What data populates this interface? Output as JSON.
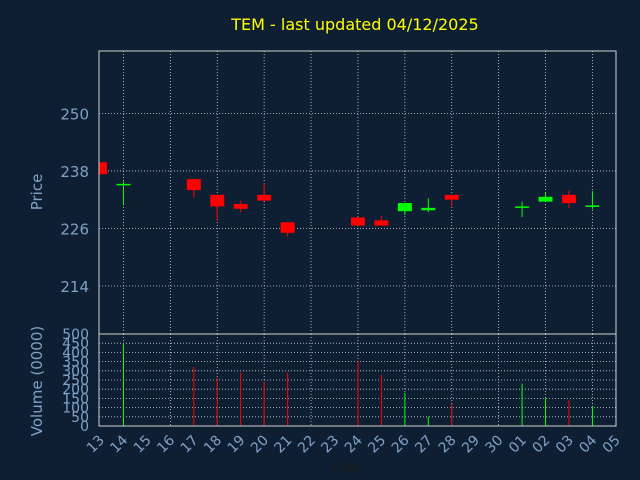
{
  "chart_data": {
    "type": "candlestick",
    "title": "TEM - last updated 04/12/2025",
    "xlabel": "Day",
    "price_panel": {
      "ylabel": "Price",
      "yticks": [
        214,
        226,
        238,
        250
      ],
      "ylim": [
        204,
        263
      ]
    },
    "volume_panel": {
      "ylabel": "Volume (0000)",
      "yticks": [
        0,
        50,
        100,
        150,
        200,
        250,
        300,
        350,
        400,
        450,
        500
      ],
      "ylim": [
        0,
        500
      ]
    },
    "x_tick_labels": [
      "13",
      "14",
      "15",
      "16",
      "17",
      "18",
      "19",
      "20",
      "21",
      "22",
      "23",
      "24",
      "25",
      "26",
      "27",
      "28",
      "29",
      "30",
      "01",
      "02",
      "03",
      "04",
      "05"
    ],
    "colors": {
      "up": "#00ff00",
      "down": "#ff0000",
      "text": "#7fa2c8",
      "title": "#ffff00",
      "grid": "#d0d0d0",
      "background": "#0f1f33"
    },
    "candles": [
      {
        "day": "13",
        "open": 239.8,
        "close": 237.3,
        "high": 239.8,
        "low": 237.3,
        "volume": 0
      },
      {
        "day": "14",
        "open": 235.0,
        "close": 235.3,
        "high": 235.8,
        "low": 230.8,
        "volume": 450
      },
      {
        "day": "17",
        "open": 236.3,
        "close": 234.0,
        "high": 236.3,
        "low": 232.4,
        "volume": 320
      },
      {
        "day": "18",
        "open": 233.0,
        "close": 230.6,
        "high": 233.0,
        "low": 227.6,
        "volume": 260
      },
      {
        "day": "19",
        "open": 231.1,
        "close": 230.1,
        "high": 231.8,
        "low": 229.4,
        "volume": 290
      },
      {
        "day": "20",
        "open": 233.0,
        "close": 231.8,
        "high": 235.4,
        "low": 231.8,
        "volume": 240
      },
      {
        "day": "21",
        "open": 227.3,
        "close": 225.1,
        "high": 227.3,
        "low": 224.3,
        "volume": 290
      },
      {
        "day": "24",
        "open": 228.3,
        "close": 226.6,
        "high": 228.3,
        "low": 226.6,
        "volume": 350
      },
      {
        "day": "25",
        "open": 227.7,
        "close": 226.6,
        "high": 228.6,
        "low": 226.6,
        "volume": 280
      },
      {
        "day": "26",
        "open": 229.6,
        "close": 231.3,
        "high": 231.3,
        "low": 228.8,
        "volume": 180
      },
      {
        "day": "27",
        "open": 229.8,
        "close": 230.3,
        "high": 232.3,
        "low": 229.4,
        "volume": 50
      },
      {
        "day": "28",
        "open": 233.0,
        "close": 232.0,
        "high": 233.0,
        "low": 230.6,
        "volume": 120
      },
      {
        "day": "01",
        "open": 230.3,
        "close": 230.6,
        "high": 231.6,
        "low": 228.4,
        "volume": 230
      },
      {
        "day": "02",
        "open": 231.6,
        "close": 232.6,
        "high": 233.6,
        "low": 231.6,
        "volume": 150
      },
      {
        "day": "03",
        "open": 233.0,
        "close": 231.3,
        "high": 234.0,
        "low": 230.3,
        "volume": 140
      },
      {
        "day": "04",
        "open": 230.6,
        "close": 230.8,
        "high": 233.8,
        "low": 230.0,
        "volume": 110
      }
    ]
  }
}
